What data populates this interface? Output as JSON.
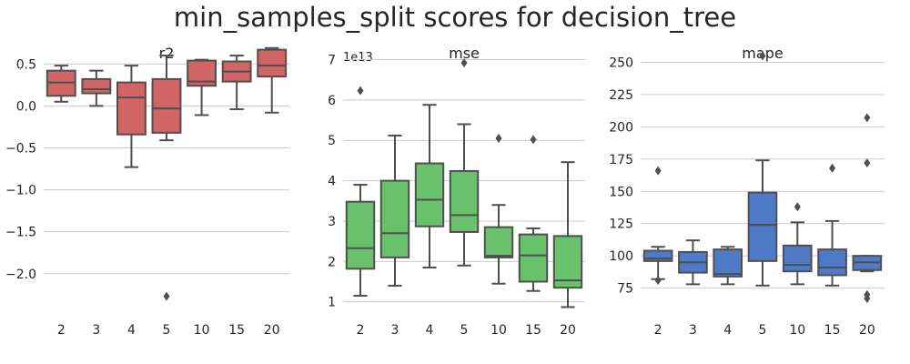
{
  "suptitle": "min_samples_split scores for decision_tree",
  "chart_data": [
    {
      "type": "box",
      "title": "r2",
      "categories": [
        "2",
        "3",
        "4",
        "5",
        "10",
        "15",
        "20"
      ],
      "color": "#d16566",
      "y_ticks": [
        0.5,
        0.0,
        -0.5,
        -1.0,
        -1.5,
        -2.0
      ],
      "y_tick_labels": [
        "0.5",
        "0.0",
        "−0.5",
        "−1.0",
        "−1.5",
        "−2.0"
      ],
      "ylim": [
        -2.48,
        0.72
      ],
      "offset_label": "",
      "boxes": [
        {
          "min": 0.05,
          "q1": 0.12,
          "median": 0.28,
          "q3": 0.42,
          "max": 0.48,
          "outliers": []
        },
        {
          "min": 0.0,
          "q1": 0.15,
          "median": 0.2,
          "q3": 0.32,
          "max": 0.42,
          "outliers": []
        },
        {
          "min": -0.73,
          "q1": -0.34,
          "median": 0.1,
          "q3": 0.28,
          "max": 0.48,
          "outliers": []
        },
        {
          "min": -0.41,
          "q1": -0.32,
          "median": -0.03,
          "q3": 0.32,
          "max": 0.6,
          "outliers": [
            -2.27
          ]
        },
        {
          "min": -0.11,
          "q1": 0.24,
          "median": 0.29,
          "q3": 0.54,
          "max": 0.55,
          "outliers": []
        },
        {
          "min": -0.04,
          "q1": 0.29,
          "median": 0.41,
          "q3": 0.53,
          "max": 0.6,
          "outliers": []
        },
        {
          "min": -0.08,
          "q1": 0.35,
          "median": 0.48,
          "q3": 0.67,
          "max": 0.69,
          "outliers": []
        }
      ]
    },
    {
      "type": "box",
      "title": "mse",
      "categories": [
        "2",
        "3",
        "4",
        "5",
        "10",
        "15",
        "20"
      ],
      "color": "#6ac16c",
      "y_ticks": [
        1,
        2,
        3,
        4,
        5,
        6,
        7
      ],
      "y_tick_labels": [
        "1",
        "2",
        "3",
        "4",
        "5",
        "6",
        "7"
      ],
      "ylim": [
        0.7,
        7.35
      ],
      "offset_label": "1e13",
      "boxes": [
        {
          "min": 1.15,
          "q1": 1.82,
          "median": 2.33,
          "q3": 3.48,
          "max": 3.9,
          "outliers": [
            6.23
          ]
        },
        {
          "min": 1.4,
          "q1": 2.1,
          "median": 2.7,
          "q3": 4.0,
          "max": 5.12,
          "outliers": []
        },
        {
          "min": 1.85,
          "q1": 2.87,
          "median": 3.53,
          "q3": 4.43,
          "max": 5.88,
          "outliers": []
        },
        {
          "min": 1.9,
          "q1": 2.73,
          "median": 3.15,
          "q3": 4.24,
          "max": 5.4,
          "outliers": [
            6.92
          ]
        },
        {
          "min": 1.45,
          "q1": 2.1,
          "median": 2.14,
          "q3": 2.85,
          "max": 3.4,
          "outliers": [
            5.05
          ]
        },
        {
          "min": 1.27,
          "q1": 1.5,
          "median": 2.15,
          "q3": 2.67,
          "max": 2.82,
          "outliers": [
            5.02
          ]
        },
        {
          "min": 0.87,
          "q1": 1.35,
          "median": 1.53,
          "q3": 2.63,
          "max": 4.46,
          "outliers": []
        }
      ]
    },
    {
      "type": "box",
      "title": "mape",
      "categories": [
        "2",
        "3",
        "4",
        "5",
        "10",
        "15",
        "20"
      ],
      "color": "#4e7ac7",
      "y_ticks": [
        75,
        100,
        125,
        150,
        175,
        200,
        225,
        250
      ],
      "y_tick_labels": [
        "75",
        "100",
        "125",
        "150",
        "175",
        "200",
        "225",
        "250"
      ],
      "ylim": [
        55,
        263
      ],
      "offset_label": "",
      "boxes": [
        {
          "min": 82,
          "q1": 96,
          "median": 98,
          "q3": 104,
          "max": 107,
          "outliers": [
            166,
            81
          ]
        },
        {
          "min": 78,
          "q1": 87,
          "median": 95,
          "q3": 103,
          "max": 112,
          "outliers": []
        },
        {
          "min": 78,
          "q1": 84,
          "median": 86,
          "q3": 105,
          "max": 107,
          "outliers": []
        },
        {
          "min": 77,
          "q1": 96,
          "median": 124,
          "q3": 149,
          "max": 174,
          "outliers": [
            255
          ]
        },
        {
          "min": 78,
          "q1": 88,
          "median": 93,
          "q3": 108,
          "max": 126,
          "outliers": [
            138
          ]
        },
        {
          "min": 77,
          "q1": 85,
          "median": 91,
          "q3": 105,
          "max": 127,
          "outliers": [
            168
          ]
        },
        {
          "min": 88,
          "q1": 89,
          "median": 95,
          "q3": 100,
          "max": 100,
          "outliers": [
            207,
            172,
            70,
            67
          ]
        }
      ]
    }
  ]
}
